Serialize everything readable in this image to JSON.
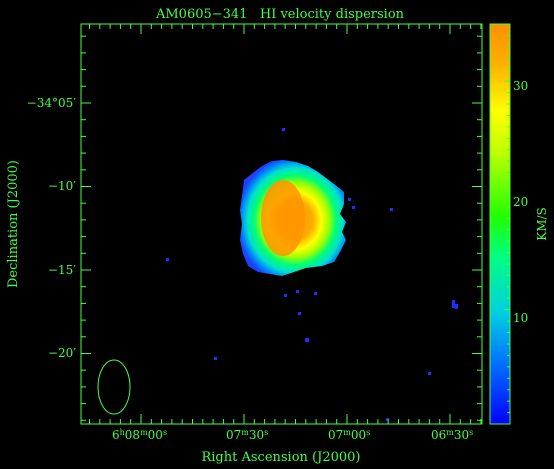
{
  "title": "AM0605−341   HI velocity dispersion",
  "xlabel": "Right Ascension (J2000)",
  "ylabel": "Declination (J2000)",
  "colorbar_label": "KM/S",
  "x_ticks": [
    {
      "h": "6",
      "m": "08",
      "s": "00"
    },
    {
      "h": "",
      "m": "07",
      "s": "30"
    },
    {
      "h": "",
      "m": "07",
      "s": "00"
    },
    {
      "h": "",
      "m": "06",
      "s": "30"
    }
  ],
  "y_ticks": [
    "−34°05′",
    "−10′",
    "−15′",
    "−20′"
  ],
  "colorbar_ticks": [
    "30",
    "20",
    "10"
  ],
  "colormap": [
    "#0000ff",
    "#0070ff",
    "#00d0e0",
    "#00ff80",
    "#20ff00",
    "#c0ff00",
    "#ffff00",
    "#ffb000",
    "#ff9000"
  ],
  "frame_color": "#44ff44"
}
